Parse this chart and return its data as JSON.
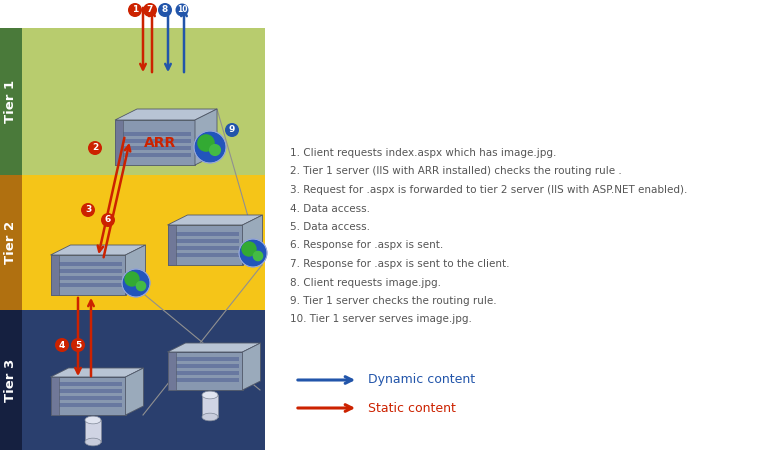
{
  "fig_w": 7.72,
  "fig_h": 4.5,
  "dpi": 100,
  "tier1_color": "#b8cc6e",
  "tier2_color": "#f5c518",
  "tier3_color": "#2a3f6e",
  "tier_strip_color": "#4a7a3a",
  "tier2_strip_color": "#c8920a",
  "tier3_strip_color": "#1a2a50",
  "tier1_label": "Tier 1",
  "tier2_label": "Tier 2",
  "tier3_label": "Tier 3",
  "tier_label_color": "#ffffff",
  "arr_label": "ARR",
  "arr_label_color": "#cc2200",
  "dynamic_color": "#2255aa",
  "static_color": "#cc2200",
  "description_lines": [
    "1. Client requests index.aspx which has image.jpg.",
    "2. Tier 1 server (IIS with ARR installed) checks the routing rule .",
    "3. Request for .aspx is forwarded to tier 2 server (IIS with ASP.NET enabled).",
    "4. Data access.",
    "5. Data access.",
    "6. Response for .aspx is sent.",
    "7. Response for .aspx is sent to the client.",
    "8. Client requests image.jpg.",
    "9. Tier 1 server checks the routing rule.",
    "10. Tier 1 server serves image.jpg."
  ],
  "legend_dynamic": "Dynamic content",
  "legend_static": "Static content",
  "bg_color": "#ffffff",
  "desc_color": "#555555",
  "desc_fontsize": 7.5,
  "legend_fontsize": 9.0
}
